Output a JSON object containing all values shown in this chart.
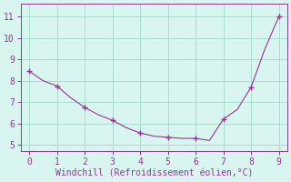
{
  "x": [
    0,
    0.5,
    1,
    1.5,
    2,
    2.5,
    3,
    3.5,
    4,
    4.5,
    5,
    5.5,
    6,
    6.5,
    7,
    7.5,
    8,
    8.5,
    9
  ],
  "y": [
    8.45,
    8.0,
    7.75,
    7.2,
    6.75,
    6.4,
    6.15,
    5.8,
    5.55,
    5.4,
    5.35,
    5.3,
    5.3,
    5.2,
    6.2,
    6.65,
    7.7,
    9.5,
    11.0
  ],
  "marker_x": [
    0,
    1,
    2,
    3,
    4,
    5,
    6,
    7,
    8,
    9
  ],
  "marker_y": [
    8.45,
    7.75,
    6.75,
    6.15,
    5.55,
    5.35,
    5.3,
    6.2,
    7.7,
    11.0
  ],
  "line_color": "#993399",
  "marker_color": "#993399",
  "bg_color": "#d8f5f0",
  "grid_color": "#aaddcc",
  "axis_color": "#993399",
  "tick_color": "#993399",
  "xlabel": "Windchill (Refroidissement éolien,°C)",
  "xlabel_color": "#993399",
  "xlim": [
    -0.3,
    9.3
  ],
  "ylim": [
    4.7,
    11.6
  ],
  "xticks": [
    0,
    1,
    2,
    3,
    4,
    5,
    6,
    7,
    8,
    9
  ],
  "yticks": [
    5,
    6,
    7,
    8,
    9,
    10,
    11
  ],
  "tick_fontsize": 7,
  "label_fontsize": 7
}
